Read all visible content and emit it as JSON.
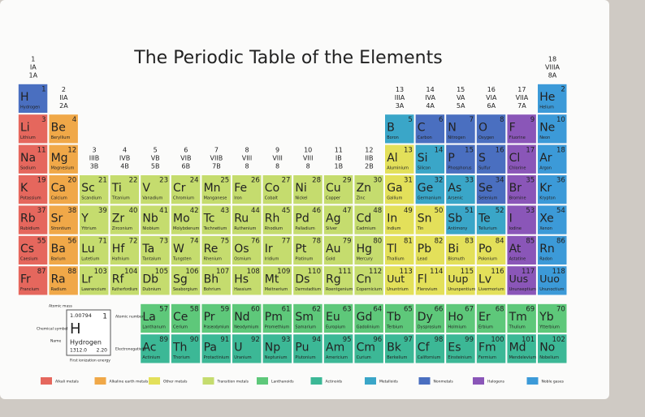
{
  "title": "The Periodic Table of the Elements",
  "groups": [
    {
      "number": 1,
      "roman": "IA",
      "cas": "1A"
    },
    {
      "number": 2,
      "roman": "IIA",
      "cas": "2A"
    },
    {
      "number": 3,
      "roman": "IIIB",
      "cas": "3B"
    },
    {
      "number": 4,
      "roman": "IVB",
      "cas": "4B"
    },
    {
      "number": 5,
      "roman": "VB",
      "cas": "5B"
    },
    {
      "number": 6,
      "roman": "VIB",
      "cas": "6B"
    },
    {
      "number": 7,
      "roman": "VIIB",
      "cas": "7B"
    },
    {
      "number": 8,
      "roman": "VIII",
      "cas": "8"
    },
    {
      "number": 9,
      "roman": "VIII",
      "cas": "8"
    },
    {
      "number": 10,
      "roman": "VIII",
      "cas": "8"
    },
    {
      "number": 11,
      "roman": "IB",
      "cas": "1B"
    },
    {
      "number": 12,
      "roman": "IIB",
      "cas": "2B"
    },
    {
      "number": 13,
      "roman": "IIIA",
      "cas": "3A"
    },
    {
      "number": 14,
      "roman": "IVA",
      "cas": "4A"
    },
    {
      "number": 15,
      "roman": "VA",
      "cas": "5A"
    },
    {
      "number": 16,
      "roman": "VIA",
      "cas": "6A"
    },
    {
      "number": 17,
      "roman": "VIIA",
      "cas": "7A"
    },
    {
      "number": 18,
      "roman": "VIIIA",
      "cas": "8A"
    }
  ],
  "categories": [
    {
      "label": "Alkali metals",
      "color": "#e5675d"
    },
    {
      "label": "Alkaline earth metals",
      "color": "#f0a848"
    },
    {
      "label": "Other metals",
      "color": "#e3e05a"
    },
    {
      "label": "Transition metals",
      "color": "#c5dc6e"
    },
    {
      "label": "Lanthanoids",
      "color": "#5ec87a"
    },
    {
      "label": "Actinoids",
      "color": "#3cb896"
    },
    {
      "label": "Metalloids",
      "color": "#3aa6c8"
    },
    {
      "label": "Nonmetals",
      "color": "#4a6fc0"
    },
    {
      "label": "Halogens",
      "color": "#8a56b8"
    },
    {
      "label": "Noble gases",
      "color": "#3c9ad8"
    }
  ],
  "elements": [
    [
      1,
      "H",
      "Hydrogen",
      7
    ],
    [
      2,
      "He",
      "Helium",
      9
    ],
    [
      3,
      "Li",
      "Lithium",
      0
    ],
    [
      4,
      "Be",
      "Beryllium",
      1
    ],
    [
      5,
      "B",
      "Boron",
      6
    ],
    [
      6,
      "C",
      "Carbon",
      7
    ],
    [
      7,
      "N",
      "Nitrogen",
      7
    ],
    [
      8,
      "O",
      "Oxygen",
      7
    ],
    [
      9,
      "F",
      "Fluorine",
      8
    ],
    [
      10,
      "Ne",
      "Neon",
      9
    ],
    [
      11,
      "Na",
      "Sodium",
      0
    ],
    [
      12,
      "Mg",
      "Magnesium",
      1
    ],
    [
      13,
      "Al",
      "Aluminium",
      2
    ],
    [
      14,
      "Si",
      "Silicon",
      6
    ],
    [
      15,
      "P",
      "Phosphorus",
      7
    ],
    [
      16,
      "S",
      "Sulfur",
      7
    ],
    [
      17,
      "Cl",
      "Chlorine",
      8
    ],
    [
      18,
      "Ar",
      "Argon",
      9
    ],
    [
      19,
      "K",
      "Potassium",
      0
    ],
    [
      20,
      "Ca",
      "Calcium",
      1
    ],
    [
      21,
      "Sc",
      "Scandium",
      3
    ],
    [
      22,
      "Ti",
      "Titanium",
      3
    ],
    [
      23,
      "V",
      "Vanadium",
      3
    ],
    [
      24,
      "Cr",
      "Chromium",
      3
    ],
    [
      25,
      "Mn",
      "Manganese",
      3
    ],
    [
      26,
      "Fe",
      "Iron",
      3
    ],
    [
      27,
      "Co",
      "Cobalt",
      3
    ],
    [
      28,
      "Ni",
      "Nickel",
      3
    ],
    [
      29,
      "Cu",
      "Copper",
      3
    ],
    [
      30,
      "Zn",
      "Zinc",
      3
    ],
    [
      31,
      "Ga",
      "Gallium",
      2
    ],
    [
      32,
      "Ge",
      "Germanium",
      6
    ],
    [
      33,
      "As",
      "Arsenic",
      6
    ],
    [
      34,
      "Se",
      "Selenium",
      7
    ],
    [
      35,
      "Br",
      "Bromine",
      8
    ],
    [
      36,
      "Kr",
      "Krypton",
      9
    ],
    [
      37,
      "Rb",
      "Rubidium",
      0
    ],
    [
      38,
      "Sr",
      "Strontium",
      1
    ],
    [
      39,
      "Y",
      "Yttrium",
      3
    ],
    [
      40,
      "Zr",
      "Zirconium",
      3
    ],
    [
      41,
      "Nb",
      "Niobium",
      3
    ],
    [
      42,
      "Mo",
      "Molybdenum",
      3
    ],
    [
      43,
      "Tc",
      "Technetium",
      3
    ],
    [
      44,
      "Ru",
      "Ruthenium",
      3
    ],
    [
      45,
      "Rh",
      "Rhodium",
      3
    ],
    [
      46,
      "Pd",
      "Palladium",
      3
    ],
    [
      47,
      "Ag",
      "Silver",
      3
    ],
    [
      48,
      "Cd",
      "Cadmium",
      3
    ],
    [
      49,
      "In",
      "Indium",
      2
    ],
    [
      50,
      "Sn",
      "Tin",
      2
    ],
    [
      51,
      "Sb",
      "Antimony",
      6
    ],
    [
      52,
      "Te",
      "Tellurium",
      6
    ],
    [
      53,
      "I",
      "Iodine",
      8
    ],
    [
      54,
      "Xe",
      "Xenon",
      9
    ],
    [
      55,
      "Cs",
      "Caesium",
      0
    ],
    [
      56,
      "Ba",
      "Barium",
      1
    ],
    [
      57,
      "La",
      "Lanthanum",
      4
    ],
    [
      58,
      "Ce",
      "Cerium",
      4
    ],
    [
      59,
      "Pr",
      "Praseodymium",
      4
    ],
    [
      60,
      "Nd",
      "Neodymium",
      4
    ],
    [
      61,
      "Pm",
      "Promethium",
      4
    ],
    [
      62,
      "Sm",
      "Samarium",
      4
    ],
    [
      63,
      "Eu",
      "Europium",
      4
    ],
    [
      64,
      "Gd",
      "Gadolinium",
      4
    ],
    [
      65,
      "Tb",
      "Terbium",
      4
    ],
    [
      66,
      "Dy",
      "Dysprosium",
      4
    ],
    [
      67,
      "Ho",
      "Holmium",
      4
    ],
    [
      68,
      "Er",
      "Erbium",
      4
    ],
    [
      69,
      "Tm",
      "Thulium",
      4
    ],
    [
      70,
      "Yb",
      "Ytterbium",
      4
    ],
    [
      71,
      "Lu",
      "Lutetium",
      3
    ],
    [
      72,
      "Hf",
      "Hafnium",
      3
    ],
    [
      73,
      "Ta",
      "Tantalum",
      3
    ],
    [
      74,
      "W",
      "Tungsten",
      3
    ],
    [
      75,
      "Re",
      "Rhenium",
      3
    ],
    [
      76,
      "Os",
      "Osmium",
      3
    ],
    [
      77,
      "Ir",
      "Iridium",
      3
    ],
    [
      78,
      "Pt",
      "Platinum",
      3
    ],
    [
      79,
      "Au",
      "Gold",
      3
    ],
    [
      80,
      "Hg",
      "Mercury",
      3
    ],
    [
      81,
      "Tl",
      "Thallium",
      2
    ],
    [
      82,
      "Pb",
      "Lead",
      2
    ],
    [
      83,
      "Bi",
      "Bismuth",
      2
    ],
    [
      84,
      "Po",
      "Polonium",
      2
    ],
    [
      85,
      "At",
      "Astatine",
      8
    ],
    [
      86,
      "Rn",
      "Radon",
      9
    ],
    [
      87,
      "Fr",
      "Francium",
      0
    ],
    [
      88,
      "Ra",
      "Radium",
      1
    ],
    [
      89,
      "Ac",
      "Actinium",
      5
    ],
    [
      90,
      "Th",
      "Thorium",
      5
    ],
    [
      91,
      "Pa",
      "Protactinium",
      5
    ],
    [
      92,
      "U",
      "Uranium",
      5
    ],
    [
      93,
      "Np",
      "Neptunium",
      5
    ],
    [
      94,
      "Pu",
      "Plutonium",
      5
    ],
    [
      95,
      "Am",
      "Americium",
      5
    ],
    [
      96,
      "Cm",
      "Curium",
      5
    ],
    [
      97,
      "Bk",
      "Berkelium",
      5
    ],
    [
      98,
      "Cf",
      "Californium",
      5
    ],
    [
      99,
      "Es",
      "Einsteinium",
      5
    ],
    [
      100,
      "Fm",
      "Fermium",
      5
    ],
    [
      101,
      "Md",
      "Mendelevium",
      5
    ],
    [
      102,
      "No",
      "Nobelium",
      5
    ],
    [
      103,
      "Lr",
      "Lawrencium",
      3
    ],
    [
      104,
      "Rf",
      "Rutherfordium",
      3
    ],
    [
      105,
      "Db",
      "Dubnium",
      3
    ],
    [
      106,
      "Sg",
      "Seaborgium",
      3
    ],
    [
      107,
      "Bh",
      "Bohrium",
      3
    ],
    [
      108,
      "Hs",
      "Hassium",
      3
    ],
    [
      109,
      "Mt",
      "Meitnerium",
      3
    ],
    [
      110,
      "Ds",
      "Darmstadtium",
      3
    ],
    [
      111,
      "Rg",
      "Roentgenium",
      3
    ],
    [
      112,
      "Cn",
      "Copernicium",
      3
    ],
    [
      113,
      "Uut",
      "Ununtrium",
      2
    ],
    [
      114,
      "Fl",
      "Flerovium",
      2
    ],
    [
      115,
      "Uup",
      "Ununpentium",
      2
    ],
    [
      116,
      "Lv",
      "Livermorium",
      2
    ],
    [
      117,
      "Uus",
      "Ununseptium",
      8
    ],
    [
      118,
      "Uuo",
      "Ununoctium",
      9
    ]
  ],
  "key": {
    "mass": "1.00794",
    "number": 1,
    "symbol": "H",
    "name": "Hydrogen",
    "ionization": "1312.0",
    "electronegativity": "2.20",
    "labels": {
      "mass": "Atomic mass",
      "number": "Atomic number",
      "symbol": "Chemical symbol",
      "name": "Name",
      "electronegativity": "Electronegativity",
      "ionization": "First ionization energy"
    }
  }
}
